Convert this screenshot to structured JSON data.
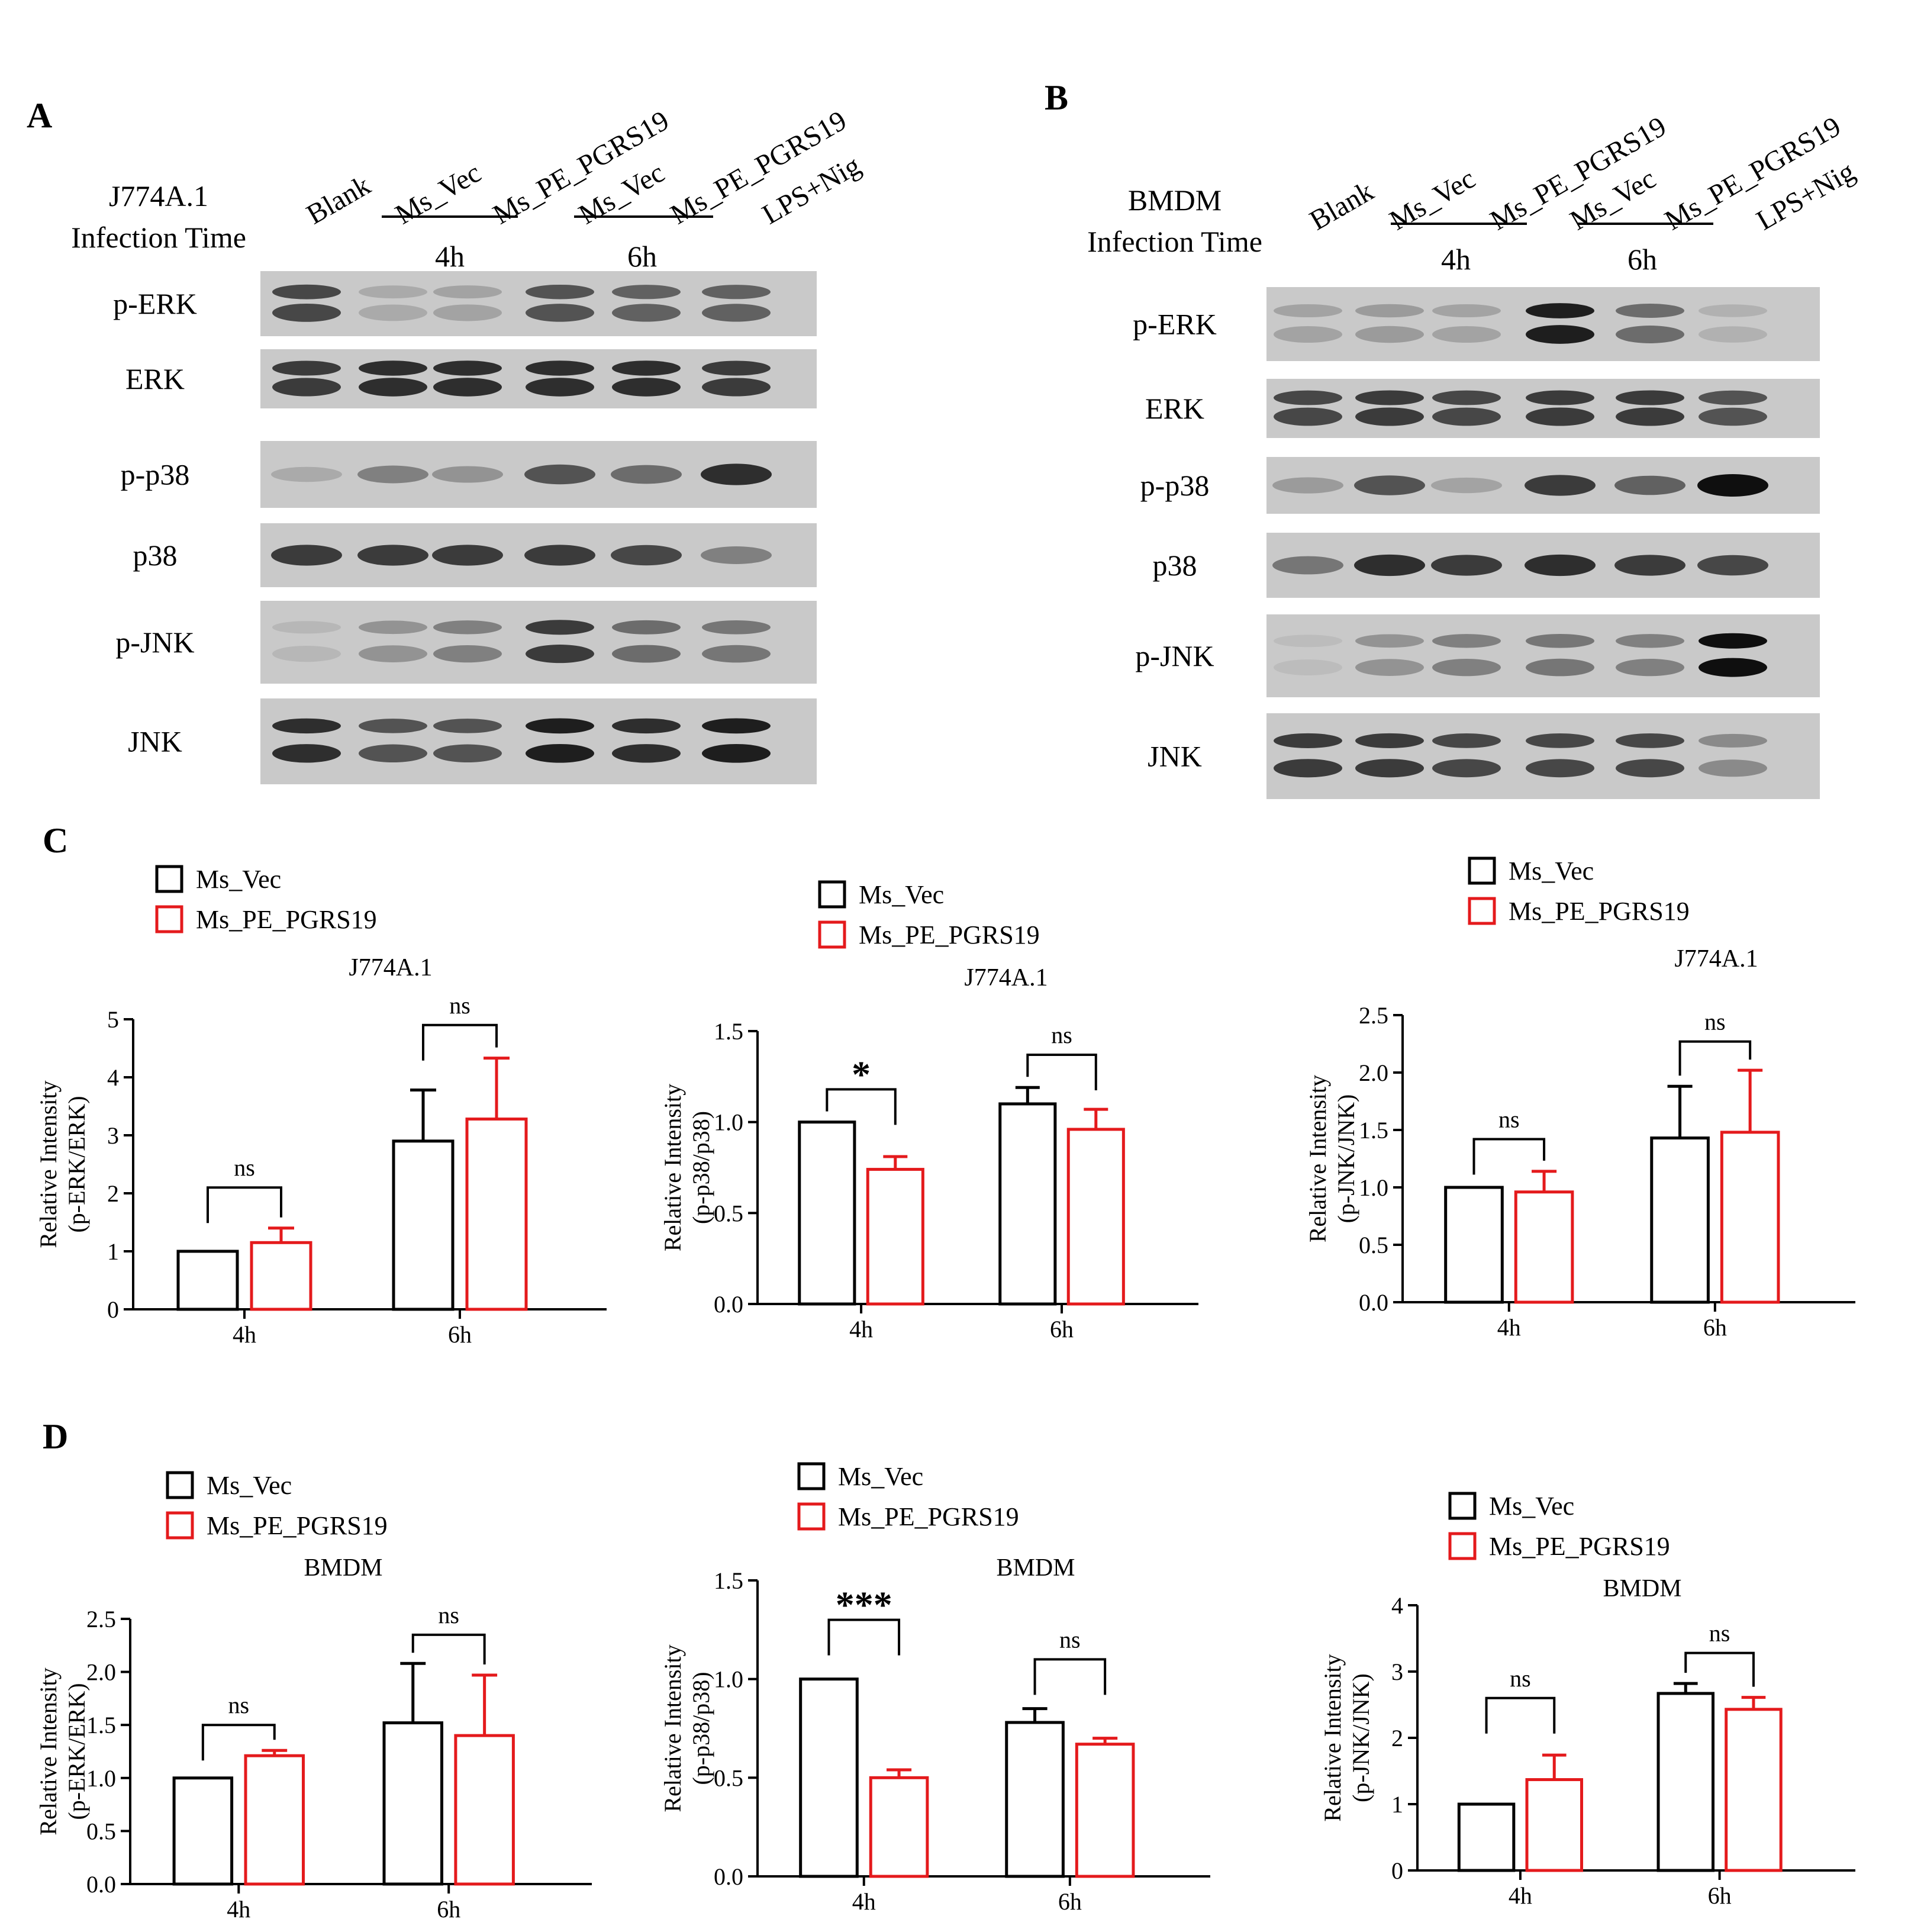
{
  "panels": {
    "A": "A",
    "B": "B",
    "C": "C",
    "D": "D"
  },
  "blots": [
    {
      "header_lines": [
        "J774A.1",
        "Infection Time"
      ],
      "lanes": [
        "Blank",
        "Ms_Vec",
        "Ms_PE_PGRS19",
        "Ms_Vec",
        "Ms_PE_PGRS19",
        "LPS+Nig"
      ],
      "time_groups": [
        "4h",
        "6h"
      ],
      "proteins": [
        "p-ERK",
        "ERK",
        "p-p38",
        "p38",
        "p-JNK",
        "JNK"
      ],
      "band_intensity": [
        [
          0.8,
          0.3,
          0.35,
          0.75,
          0.7,
          0.7
        ],
        [
          0.85,
          0.9,
          0.9,
          0.9,
          0.9,
          0.85
        ],
        [
          0.3,
          0.55,
          0.45,
          0.75,
          0.65,
          0.9
        ],
        [
          0.85,
          0.85,
          0.85,
          0.85,
          0.8,
          0.55
        ],
        [
          0.2,
          0.45,
          0.55,
          0.85,
          0.65,
          0.6
        ],
        [
          0.9,
          0.75,
          0.75,
          0.95,
          0.9,
          0.95
        ]
      ]
    },
    {
      "header_lines": [
        "BMDM",
        "Infection Time"
      ],
      "lanes": [
        "Blank",
        "Ms_Vec",
        "Ms_PE_PGRS19",
        "Ms_Vec",
        "Ms_PE_PGRS19",
        "LPS+Nig"
      ],
      "time_groups": [
        "4h",
        "6h"
      ],
      "proteins": [
        "p-ERK",
        "ERK",
        "p-p38",
        "p38",
        "p-JNK",
        "JNK"
      ],
      "band_intensity": [
        [
          0.35,
          0.4,
          0.35,
          0.95,
          0.65,
          0.25
        ],
        [
          0.8,
          0.85,
          0.8,
          0.85,
          0.85,
          0.75
        ],
        [
          0.4,
          0.75,
          0.35,
          0.85,
          0.7,
          1.0
        ],
        [
          0.6,
          0.9,
          0.85,
          0.9,
          0.85,
          0.8
        ],
        [
          0.15,
          0.45,
          0.55,
          0.6,
          0.55,
          1.0
        ],
        [
          0.85,
          0.85,
          0.8,
          0.8,
          0.8,
          0.5
        ]
      ]
    }
  ],
  "colors": {
    "ms_vec": "#000000",
    "ms_pe_pgrs19": "#e41a1c"
  },
  "chart_data": [
    {
      "type": "bar",
      "title": "J774A.1",
      "categories": [
        "4h",
        "6h"
      ],
      "ylabel": "Relative Intensity\n(p-ERK/ERK)",
      "ylim": [
        0,
        5
      ],
      "yticks": [
        "0",
        "1",
        "2",
        "3",
        "4",
        "5"
      ],
      "legend": [
        "Ms_Vec",
        "Ms_PE_PGRS19"
      ],
      "series": [
        {
          "name": "Ms_Vec",
          "values": [
            1.0,
            2.9
          ],
          "errors": [
            0,
            0.88
          ]
        },
        {
          "name": "Ms_PE_PGRS19",
          "values": [
            1.15,
            3.28
          ],
          "errors": [
            0.25,
            1.05
          ]
        }
      ],
      "significance": [
        "ns",
        "ns"
      ],
      "sig_y": [
        2.1,
        4.9
      ]
    },
    {
      "type": "bar",
      "title": "J774A.1",
      "categories": [
        "4h",
        "6h"
      ],
      "ylabel": "Relative Intensity\n(p-p38/p38)",
      "ylim": [
        0,
        1.5
      ],
      "yticks": [
        "0.0",
        "0.5",
        "1.0",
        "1.5"
      ],
      "legend": [
        "Ms_Vec",
        "Ms_PE_PGRS19"
      ],
      "series": [
        {
          "name": "Ms_Vec",
          "values": [
            1.0,
            1.1
          ],
          "errors": [
            0,
            0.09
          ]
        },
        {
          "name": "Ms_PE_PGRS19",
          "values": [
            0.74,
            0.96
          ],
          "errors": [
            0.07,
            0.11
          ]
        }
      ],
      "significance": [
        "*",
        "ns"
      ],
      "sig_y": [
        1.18,
        1.37
      ]
    },
    {
      "type": "bar",
      "title": "J774A.1",
      "categories": [
        "4h",
        "6h"
      ],
      "ylabel": "Relative Intensity\n(p-JNK/JNK)",
      "ylim": [
        0,
        2.5
      ],
      "yticks": [
        "0.0",
        "0.5",
        "1.0",
        "1.5",
        "2.0",
        "2.5"
      ],
      "legend": [
        "Ms_Vec",
        "Ms_PE_PGRS19"
      ],
      "series": [
        {
          "name": "Ms_Vec",
          "values": [
            1.0,
            1.43
          ],
          "errors": [
            0,
            0.45
          ]
        },
        {
          "name": "Ms_PE_PGRS19",
          "values": [
            0.96,
            1.48
          ],
          "errors": [
            0.18,
            0.54
          ]
        }
      ],
      "significance": [
        "ns",
        "ns"
      ],
      "sig_y": [
        1.42,
        2.27
      ]
    },
    {
      "type": "bar",
      "title": "BMDM",
      "categories": [
        "4h",
        "6h"
      ],
      "ylabel": "Relative Intensity\n(p-ERK/ERK)",
      "ylim": [
        0,
        2.5
      ],
      "yticks": [
        "0.0",
        "0.5",
        "1.0",
        "1.5",
        "2.0",
        "2.5"
      ],
      "legend": [
        "Ms_Vec",
        "Ms_PE_PGRS19"
      ],
      "series": [
        {
          "name": "Ms_Vec",
          "values": [
            1.0,
            1.52
          ],
          "errors": [
            0,
            0.56
          ]
        },
        {
          "name": "Ms_PE_PGRS19",
          "values": [
            1.21,
            1.4
          ],
          "errors": [
            0.05,
            0.57
          ]
        }
      ],
      "significance": [
        "ns",
        "ns"
      ],
      "sig_y": [
        1.5,
        2.35
      ]
    },
    {
      "type": "bar",
      "title": "BMDM",
      "categories": [
        "4h",
        "6h"
      ],
      "ylabel": "Relative Intensity\n(p-p38/p38)",
      "ylim": [
        0,
        1.5
      ],
      "yticks": [
        "0.0",
        "0.5",
        "1.0",
        "1.5"
      ],
      "legend": [
        "Ms_Vec",
        "Ms_PE_PGRS19"
      ],
      "series": [
        {
          "name": "Ms_Vec",
          "values": [
            1.0,
            0.78
          ],
          "errors": [
            0,
            0.07
          ]
        },
        {
          "name": "Ms_PE_PGRS19",
          "values": [
            0.5,
            0.67
          ],
          "errors": [
            0.04,
            0.03
          ]
        }
      ],
      "significance": [
        "***",
        "ns"
      ],
      "sig_y": [
        1.3,
        1.1
      ]
    },
    {
      "type": "bar",
      "title": "BMDM",
      "categories": [
        "4h",
        "6h"
      ],
      "ylabel": "Relative Intensity\n(p-JNK/JNK)",
      "ylim": [
        0,
        4
      ],
      "yticks": [
        "0",
        "1",
        "2",
        "3",
        "4"
      ],
      "legend": [
        "Ms_Vec",
        "Ms_PE_PGRS19"
      ],
      "series": [
        {
          "name": "Ms_Vec",
          "values": [
            1.0,
            2.67
          ],
          "errors": [
            0,
            0.15
          ]
        },
        {
          "name": "Ms_PE_PGRS19",
          "values": [
            1.37,
            2.43
          ],
          "errors": [
            0.37,
            0.18
          ]
        }
      ],
      "significance": [
        "ns",
        "ns"
      ],
      "sig_y": [
        2.6,
        3.28
      ]
    }
  ]
}
